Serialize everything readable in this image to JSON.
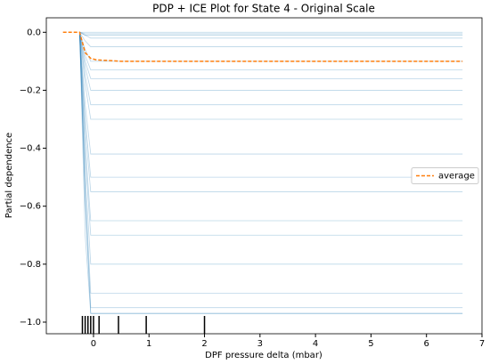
{
  "chart_data": {
    "type": "line",
    "title": "PDP + ICE Plot for State 4 - Original Scale",
    "xlabel": "DPF pressure delta (mbar)",
    "ylabel": "Partial dependence",
    "x": [
      -0.55,
      -0.25,
      -0.15,
      -0.05,
      0.05,
      0.5,
      1,
      2,
      6.65
    ],
    "ice_color": "#1f77b4",
    "ice_alpha": 0.3,
    "series": [
      {
        "name": "average",
        "color": "#ff7f0e",
        "dashed": true,
        "values": [
          0,
          0,
          -0.07,
          -0.09,
          -0.095,
          -0.1,
          -0.1,
          -0.1,
          -0.1
        ]
      },
      {
        "values": [
          null,
          0,
          0,
          0,
          0,
          0,
          0,
          0,
          0
        ]
      },
      {
        "values": [
          null,
          0,
          -0.005,
          -0.005,
          -0.005,
          -0.005,
          -0.005,
          -0.005,
          -0.005
        ]
      },
      {
        "values": [
          null,
          0,
          -0.01,
          -0.01,
          -0.01,
          -0.01,
          -0.01,
          -0.01,
          -0.01
        ]
      },
      {
        "values": [
          null,
          0,
          -0.01,
          -0.02,
          -0.02,
          -0.02,
          -0.02,
          -0.02,
          -0.02
        ]
      },
      {
        "values": [
          null,
          0,
          -0.03,
          -0.05,
          -0.05,
          -0.05,
          -0.05,
          -0.05,
          -0.05
        ]
      },
      {
        "values": [
          null,
          0,
          -0.06,
          -0.1,
          -0.1,
          -0.1,
          -0.1,
          -0.1,
          -0.1
        ]
      },
      {
        "values": [
          null,
          0,
          -0.08,
          -0.13,
          -0.13,
          -0.13,
          -0.13,
          -0.13,
          -0.13
        ]
      },
      {
        "values": [
          null,
          0,
          -0.1,
          -0.16,
          -0.16,
          -0.16,
          -0.16,
          -0.16,
          -0.16
        ]
      },
      {
        "values": [
          null,
          0,
          -0.12,
          -0.2,
          -0.2,
          -0.2,
          -0.2,
          -0.2,
          -0.2
        ]
      },
      {
        "values": [
          null,
          0,
          -0.15,
          -0.25,
          -0.25,
          -0.25,
          -0.25,
          -0.25,
          -0.25
        ]
      },
      {
        "values": [
          null,
          0,
          -0.18,
          -0.3,
          -0.3,
          -0.3,
          -0.3,
          -0.3,
          -0.3
        ]
      },
      {
        "values": [
          null,
          0,
          -0.25,
          -0.42,
          -0.42,
          -0.42,
          -0.42,
          -0.42,
          -0.42
        ]
      },
      {
        "values": [
          null,
          0,
          -0.3,
          -0.5,
          -0.5,
          -0.5,
          -0.5,
          -0.5,
          -0.5
        ]
      },
      {
        "values": [
          null,
          0,
          -0.33,
          -0.55,
          -0.55,
          -0.55,
          -0.55,
          -0.55,
          -0.55
        ]
      },
      {
        "values": [
          null,
          0,
          -0.39,
          -0.65,
          -0.65,
          -0.65,
          -0.65,
          -0.65,
          -0.65
        ]
      },
      {
        "values": [
          null,
          0,
          -0.42,
          -0.7,
          -0.7,
          -0.7,
          -0.7,
          -0.7,
          -0.7
        ]
      },
      {
        "values": [
          null,
          0,
          -0.48,
          -0.8,
          -0.8,
          -0.8,
          -0.8,
          -0.8,
          -0.8
        ]
      },
      {
        "values": [
          null,
          0,
          -0.54,
          -0.9,
          -0.9,
          -0.9,
          -0.9,
          -0.9,
          -0.9
        ]
      },
      {
        "values": [
          null,
          0,
          -0.57,
          -0.95,
          -0.95,
          -0.95,
          -0.95,
          -0.95,
          -0.95
        ]
      },
      {
        "values": [
          null,
          0,
          -0.58,
          -0.97,
          -0.97,
          -0.97,
          -0.97,
          -0.97,
          -0.97
        ]
      },
      {
        "values": [
          null,
          0,
          -0.7,
          -0.97,
          -0.97,
          -0.97,
          -0.97,
          -0.97,
          -0.97
        ]
      }
    ],
    "rug": [
      -0.2,
      -0.15,
      -0.1,
      -0.05,
      0,
      0.1,
      0.45,
      0.95,
      2.0
    ],
    "xlim": [
      -0.85,
      7.0
    ],
    "ylim": [
      -1.04,
      0.05
    ],
    "xticks": [
      0,
      1,
      2,
      3,
      4,
      5,
      6,
      7
    ],
    "yticks": [
      {
        "value": 0,
        "label": "0.0"
      },
      {
        "value": -0.2,
        "label": "−0.2"
      },
      {
        "value": -0.4,
        "label": "−0.4"
      },
      {
        "value": -0.6,
        "label": "−0.6"
      },
      {
        "value": -0.8,
        "label": "−0.8"
      },
      {
        "value": -1.0,
        "label": "−1.0"
      }
    ],
    "legend": "center right"
  }
}
